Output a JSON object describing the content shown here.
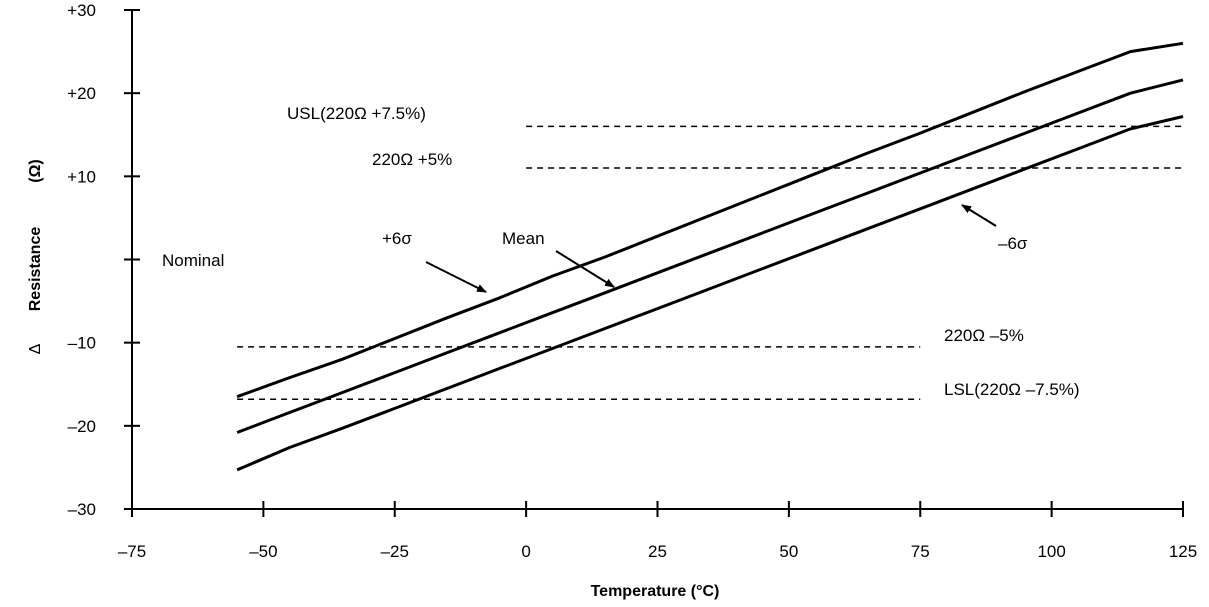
{
  "chart_data": {
    "type": "line",
    "xlabel": "Temperature (°C)",
    "ylabel": "Resistance",
    "ylabel_delta": "Δ",
    "ylabel_unit": "(Ω)",
    "xlim": [
      -75,
      125
    ],
    "ylim": [
      -30,
      30
    ],
    "x_ticks": [
      -75,
      -50,
      -25,
      0,
      25,
      50,
      75,
      100,
      125
    ],
    "x_tick_labels": [
      "–75",
      "–50",
      "–25",
      "0",
      "25",
      "50",
      "75",
      "100",
      "125"
    ],
    "y_ticks": [
      -30,
      -20,
      -10,
      0,
      10,
      20,
      30
    ],
    "y_tick_labels": [
      "–30",
      "–20",
      "–10",
      "",
      "+10",
      "+20",
      "+30"
    ],
    "grid": false,
    "series": [
      {
        "name": "+6σ",
        "x": [
          -55,
          -45,
          -35,
          -25,
          -15,
          -5,
          5,
          15,
          25,
          35,
          45,
          55,
          65,
          75,
          85,
          95,
          105,
          115,
          125
        ],
        "y": [
          -16.5,
          -14.2,
          -12.0,
          -9.5,
          -7.0,
          -4.6,
          -2.0,
          0.3,
          2.8,
          5.3,
          7.8,
          10.3,
          12.8,
          15.2,
          17.7,
          20.2,
          22.6,
          25.0,
          26.0
        ]
      },
      {
        "name": "Mean",
        "x": [
          -55,
          -45,
          -35,
          -25,
          -15,
          -5,
          5,
          15,
          25,
          35,
          45,
          55,
          65,
          75,
          85,
          95,
          105,
          115,
          125
        ],
        "y": [
          -20.8,
          -18.4,
          -16.0,
          -13.6,
          -11.2,
          -8.8,
          -6.4,
          -4.0,
          -1.6,
          0.8,
          3.2,
          5.6,
          8.0,
          10.4,
          12.8,
          15.2,
          17.6,
          20.0,
          21.6
        ]
      },
      {
        "name": "–6σ",
        "x": [
          -55,
          -45,
          -35,
          -25,
          -15,
          -5,
          5,
          15,
          25,
          35,
          45,
          55,
          65,
          75,
          85,
          95,
          105,
          115,
          125
        ],
        "y": [
          -25.3,
          -22.6,
          -20.3,
          -17.9,
          -15.5,
          -13.1,
          -10.7,
          -8.3,
          -5.9,
          -3.5,
          -1.1,
          1.3,
          3.7,
          6.1,
          8.5,
          10.9,
          13.3,
          15.7,
          17.2
        ]
      }
    ],
    "reference_lines": [
      {
        "label": "USL(220Ω +7.5%)",
        "y": 16.0,
        "x_start": 0,
        "x_end": 125
      },
      {
        "label": "220Ω +5%",
        "y": 11.0,
        "x_start": 0,
        "x_end": 125
      },
      {
        "label": "220Ω –5%",
        "y": -10.5,
        "x_start": -55,
        "x_end": 75
      },
      {
        "label": "LSL(220Ω –7.5%)",
        "y": -16.8,
        "x_start": -55,
        "x_end": 75
      }
    ],
    "annotations": [
      {
        "text": "Nominal"
      },
      {
        "text": "+6σ"
      },
      {
        "text": "Mean"
      },
      {
        "text": "–6σ"
      }
    ]
  }
}
